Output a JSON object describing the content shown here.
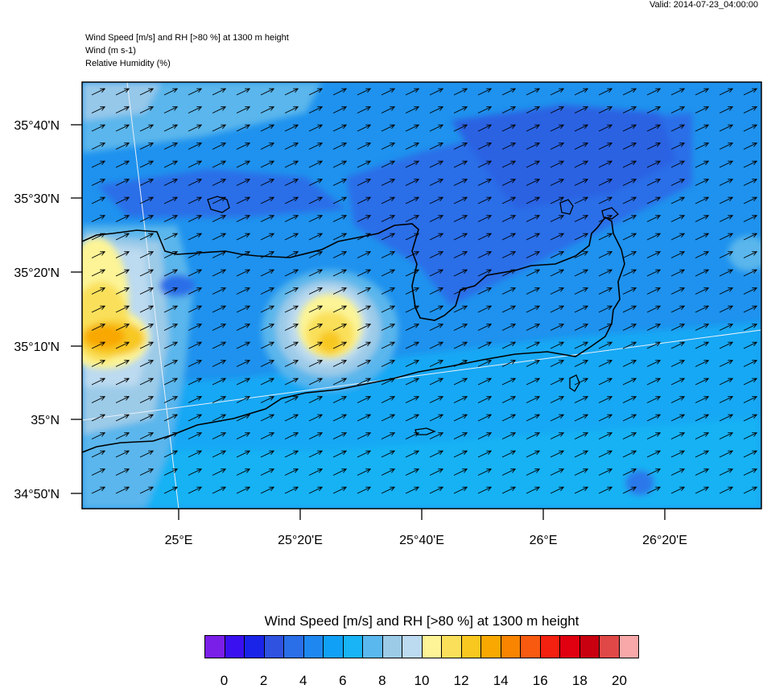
{
  "header": {
    "valid": "Valid: 2014-07-23_04:00:00",
    "title_lines": [
      "Wind Speed [m/s] and RH [>80 %] at 1300 m height",
      "Wind   (m s-1)",
      "Relative Humidity   (%)"
    ]
  },
  "map": {
    "lat_labels": [
      "35°40'N",
      "35°30'N",
      "35°20'N",
      "35°10'N",
      "35°N",
      "34°50'N"
    ],
    "lon_labels": [
      "25°E",
      "25°20'E",
      "25°40'E",
      "26°E",
      "26°20'E"
    ],
    "wind_direction": "west-southwest",
    "region": "Crete"
  },
  "legend": {
    "title": "Wind Speed [m/s] and RH [>80 %] at 1300 m height",
    "colors": [
      "#7a1fe8",
      "#3a10f0",
      "#1a24e8",
      "#3052e0",
      "#2a6ee8",
      "#1e88f0",
      "#10a0f5",
      "#18b4f5",
      "#5ab8ee",
      "#9ccbe8",
      "#bcdaf0",
      "#fcf496",
      "#fae05a",
      "#f8c820",
      "#f8a800",
      "#f88400",
      "#f85a10",
      "#f42010",
      "#e00010",
      "#c80010",
      "#e04848",
      "#f8a8a8"
    ],
    "tick_labels": [
      "0",
      "2",
      "4",
      "6",
      "8",
      "10",
      "12",
      "14",
      "16",
      "18",
      "20"
    ]
  }
}
